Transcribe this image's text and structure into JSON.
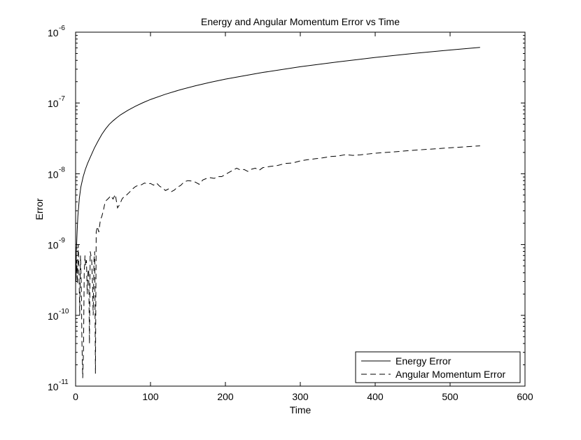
{
  "chart_data": {
    "type": "line",
    "title": "Energy and Angular Momentum Error vs Time",
    "xlabel": "Time",
    "ylabel": "Error",
    "xlim": [
      0,
      600
    ],
    "ylim": [
      1e-11,
      1e-06
    ],
    "yscale": "log",
    "grid": false,
    "legend_position": "bottom-right",
    "x_ticks": [
      {
        "value": 0,
        "label": "0"
      },
      {
        "value": 100,
        "label": "100"
      },
      {
        "value": 200,
        "label": "200"
      },
      {
        "value": 300,
        "label": "300"
      },
      {
        "value": 400,
        "label": "400"
      },
      {
        "value": 500,
        "label": "500"
      },
      {
        "value": 600,
        "label": "600"
      }
    ],
    "y_ticks": [
      {
        "value": 1e-11,
        "base": "10",
        "exponent": "-11"
      },
      {
        "value": 1e-10,
        "base": "10",
        "exponent": "-10"
      },
      {
        "value": 1e-09,
        "base": "10",
        "exponent": "-9"
      },
      {
        "value": 1e-08,
        "base": "10",
        "exponent": "-8"
      },
      {
        "value": 1e-07,
        "base": "10",
        "exponent": "-7"
      },
      {
        "value": 1e-06,
        "base": "10",
        "exponent": "-6"
      }
    ],
    "series": [
      {
        "name": "Energy Error",
        "style": "solid",
        "color": "#000000",
        "points": [
          [
            0.5,
            3e-10
          ],
          [
            1,
            8e-10
          ],
          [
            2,
            1.5e-09
          ],
          [
            3,
            2.5e-09
          ],
          [
            5,
            4.5e-09
          ],
          [
            7,
            6.5e-09
          ],
          [
            10,
            9e-09
          ],
          [
            13,
            1.15e-08
          ],
          [
            16,
            1.4e-08
          ],
          [
            20,
            1.75e-08
          ],
          [
            25,
            2.3e-08
          ],
          [
            30,
            2.9e-08
          ],
          [
            35,
            3.6e-08
          ],
          [
            40,
            4.3e-08
          ],
          [
            45,
            5e-08
          ],
          [
            50,
            5.6e-08
          ],
          [
            55,
            6.2e-08
          ],
          [
            60,
            6.8e-08
          ],
          [
            70,
            7.9e-08
          ],
          [
            80,
            9e-08
          ],
          [
            90,
            1.01e-07
          ],
          [
            100,
            1.12e-07
          ],
          [
            120,
            1.33e-07
          ],
          [
            140,
            1.54e-07
          ],
          [
            160,
            1.75e-07
          ],
          [
            180,
            1.96e-07
          ],
          [
            200,
            2.17e-07
          ],
          [
            250,
            2.7e-07
          ],
          [
            300,
            3.25e-07
          ],
          [
            350,
            3.8e-07
          ],
          [
            400,
            4.4e-07
          ],
          [
            450,
            5e-07
          ],
          [
            500,
            5.6e-07
          ],
          [
            540,
            6.1e-07
          ]
        ]
      },
      {
        "name": "Angular Momentum Error",
        "style": "dashed",
        "color": "#000000",
        "points": [
          [
            0.5,
            3e-10
          ],
          [
            1.5,
            6e-10
          ],
          [
            2.5,
            2.8e-10
          ],
          [
            3.5,
            1e-09
          ],
          [
            4.5,
            4.5e-10
          ],
          [
            5.5,
            1e-10
          ],
          [
            6.5,
            7e-10
          ],
          [
            7.5,
            3e-10
          ],
          [
            8.5,
            4e-11
          ],
          [
            9.5,
            1.3e-11
          ],
          [
            10.5,
            3e-11
          ],
          [
            11.5,
            4e-10
          ],
          [
            12.5,
            7e-10
          ],
          [
            13.5,
            5e-10
          ],
          [
            14.5,
            6e-10
          ],
          [
            15.5,
            2e-10
          ],
          [
            16.5,
            4e-10
          ],
          [
            17.5,
            4.5e-10
          ],
          [
            18.5,
            4e-11
          ],
          [
            19.5,
            8e-10
          ],
          [
            20.5,
            7e-10
          ],
          [
            21.5,
            6e-10
          ],
          [
            22.5,
            3e-10
          ],
          [
            23.5,
            1e-10
          ],
          [
            24.5,
            6e-10
          ],
          [
            25.5,
            8e-10
          ],
          [
            26.5,
            1.5e-11
          ],
          [
            27.5,
            1.5e-09
          ],
          [
            29,
            1.8e-09
          ],
          [
            31,
            1.5e-09
          ],
          [
            33,
            2.2e-09
          ],
          [
            35,
            2.5e-09
          ],
          [
            37,
            3e-09
          ],
          [
            39,
            3.8e-09
          ],
          [
            41,
            4.2e-09
          ],
          [
            44,
            4.5e-09
          ],
          [
            47,
            4.9e-09
          ],
          [
            50,
            4.4e-09
          ],
          [
            53,
            5.1e-09
          ],
          [
            56,
            3.3e-09
          ],
          [
            59,
            3.7e-09
          ],
          [
            62,
            4.4e-09
          ],
          [
            65,
            4.8e-09
          ],
          [
            68,
            5e-09
          ],
          [
            72,
            5.5e-09
          ],
          [
            76,
            6.1e-09
          ],
          [
            80,
            6.6e-09
          ],
          [
            84,
            6.9e-09
          ],
          [
            88,
            7e-09
          ],
          [
            92,
            7.4e-09
          ],
          [
            96,
            7.2e-09
          ],
          [
            100,
            7.3e-09
          ],
          [
            104,
            6.9e-09
          ],
          [
            108,
            7.4e-09
          ],
          [
            112,
            6.7e-09
          ],
          [
            116,
            6.3e-09
          ],
          [
            120,
            5.8e-09
          ],
          [
            124,
            6.1e-09
          ],
          [
            128,
            5.6e-09
          ],
          [
            132,
            5.9e-09
          ],
          [
            136,
            6.5e-09
          ],
          [
            140,
            6.8e-09
          ],
          [
            145,
            7.7e-09
          ],
          [
            150,
            8e-09
          ],
          [
            155,
            7.9e-09
          ],
          [
            160,
            7.6e-09
          ],
          [
            165,
            7.1e-09
          ],
          [
            170,
            8.2e-09
          ],
          [
            175,
            8.6e-09
          ],
          [
            180,
            8.8e-09
          ],
          [
            185,
            8.6e-09
          ],
          [
            190,
            9.1e-09
          ],
          [
            195,
            9.1e-09
          ],
          [
            200,
            9.8e-09
          ],
          [
            205,
            1.05e-08
          ],
          [
            210,
            1.12e-08
          ],
          [
            215,
            1.2e-08
          ],
          [
            220,
            1.13e-08
          ],
          [
            225,
            1.15e-08
          ],
          [
            230,
            1.08e-08
          ],
          [
            235,
            1.16e-08
          ],
          [
            240,
            1.2e-08
          ],
          [
            245,
            1.12e-08
          ],
          [
            250,
            1.22e-08
          ],
          [
            260,
            1.27e-08
          ],
          [
            270,
            1.31e-08
          ],
          [
            280,
            1.4e-08
          ],
          [
            290,
            1.42e-08
          ],
          [
            300,
            1.52e-08
          ],
          [
            310,
            1.58e-08
          ],
          [
            320,
            1.63e-08
          ],
          [
            330,
            1.68e-08
          ],
          [
            340,
            1.75e-08
          ],
          [
            350,
            1.78e-08
          ],
          [
            360,
            1.86e-08
          ],
          [
            370,
            1.82e-08
          ],
          [
            380,
            1.85e-08
          ],
          [
            390,
            1.9e-08
          ],
          [
            400,
            1.95e-08
          ],
          [
            420,
            2.02e-08
          ],
          [
            440,
            2.1e-08
          ],
          [
            460,
            2.18e-08
          ],
          [
            480,
            2.25e-08
          ],
          [
            500,
            2.33e-08
          ],
          [
            520,
            2.4e-08
          ],
          [
            540,
            2.48e-08
          ]
        ]
      }
    ]
  }
}
